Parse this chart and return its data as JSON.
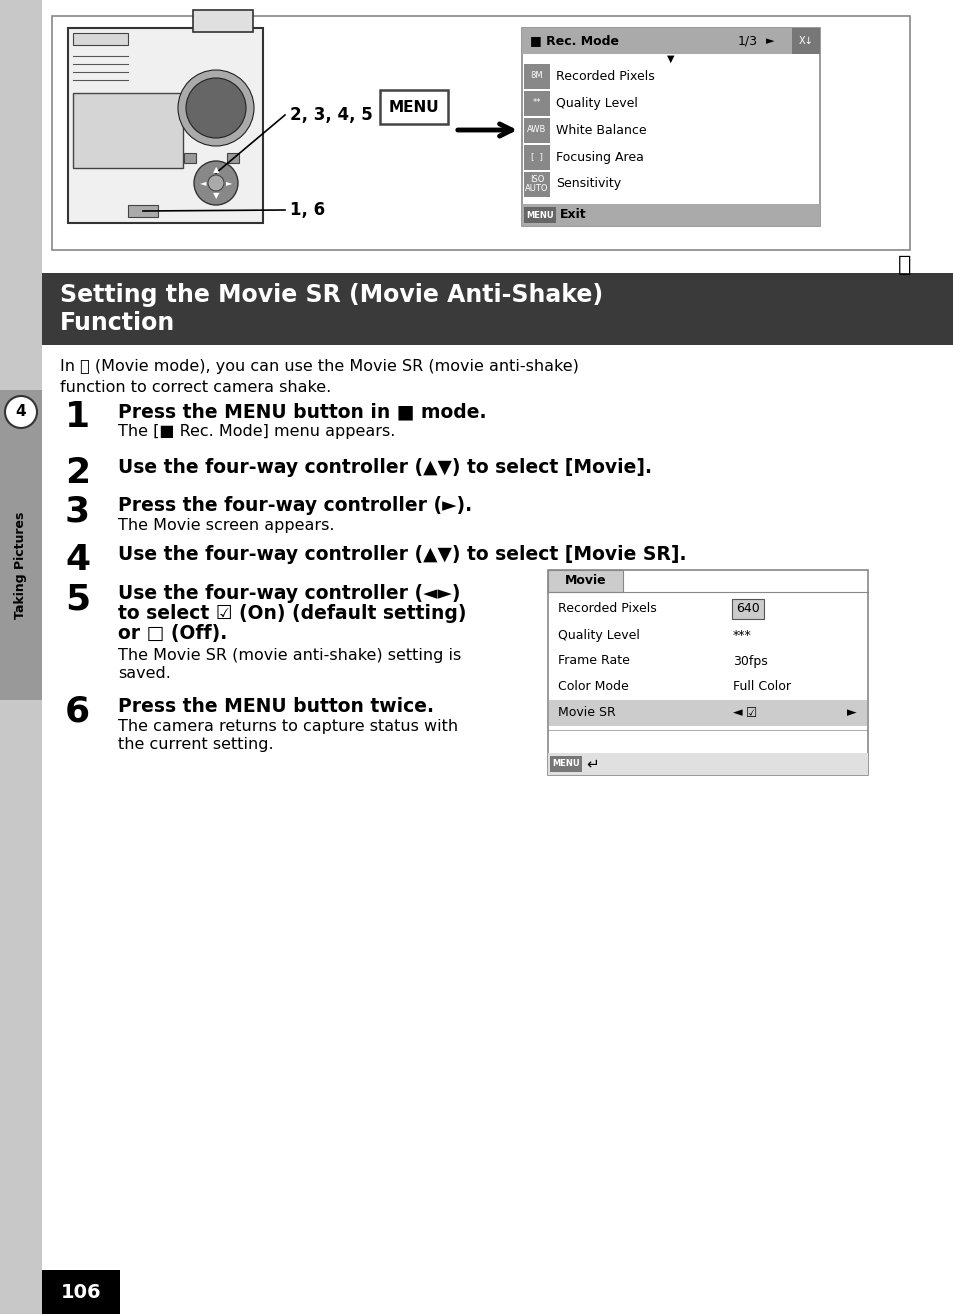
{
  "page_bg": "#e8e8e8",
  "content_bg": "#ffffff",
  "title_bg": "#3a3a3a",
  "title_color": "#ffffff",
  "left_sidebar_color": "#c8c8c8",
  "left_tab_color": "#a8a8a8",
  "illus_box_border": "#888888",
  "menu_border": "#888888",
  "menu_title_bg": "#b0b0b0",
  "menu_icon_bg": "#888888",
  "menu_footer_bg": "#b0b0b0",
  "rec_items": [
    [
      "8M",
      "Recorded Pixels"
    ],
    [
      "**",
      "Quality Level"
    ],
    [
      "AWB",
      "White Balance"
    ],
    [
      "[  ]",
      "Focusing Area"
    ],
    [
      "ISO\nAUTO",
      "Sensitivity"
    ]
  ],
  "movie_items": [
    [
      "Recorded Pixels",
      "640",
      false
    ],
    [
      "Quality Level",
      "***",
      false
    ],
    [
      "Frame Rate",
      "30fps",
      false
    ],
    [
      "Color Mode",
      "Full Color",
      false
    ],
    [
      "Movie SR",
      "☑",
      true
    ]
  ],
  "page_num": "106",
  "page_num_bg": "#000000",
  "page_num_color": "#ffffff"
}
